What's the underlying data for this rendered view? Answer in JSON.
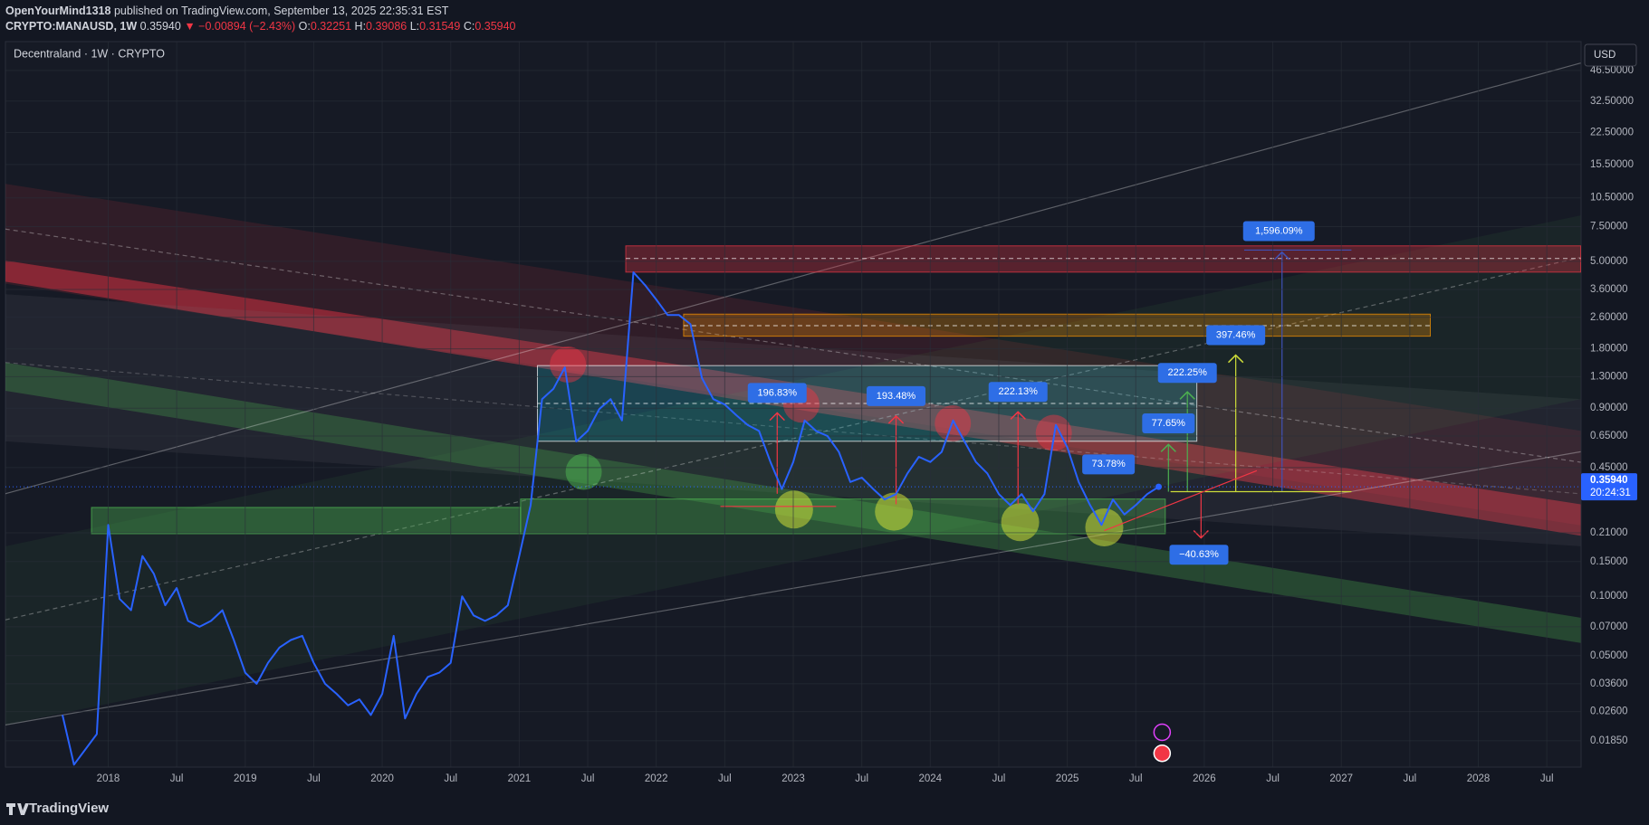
{
  "header": {
    "author": "OpenYourMind1318",
    "published": "published on TradingView.com, September 13, 2025 22:35:31 EST",
    "symbol": "CRYPTO:MANAUSD, 1W",
    "last": "0.35940",
    "change": "▼ −0.00894 (−2.43%)",
    "open_label": "O:",
    "open": "0.32251",
    "high_label": "H:",
    "high": "0.39086",
    "low_label": "L:",
    "low": "0.31549",
    "close_label": "C:",
    "close": "0.35940"
  },
  "chart_data": {
    "type": "line",
    "title": "Decentraland · 1W · CRYPTO",
    "currency": "USD",
    "last_price_label": "0.35940",
    "countdown": "20:24:31",
    "color": "#2962ff",
    "log_scale": true,
    "grid": true,
    "x": [
      "2017-09",
      "2017-10",
      "2017-12",
      "2018-01",
      "2018-02",
      "2018-03",
      "2018-04",
      "2018-05",
      "2018-06",
      "2018-07",
      "2018-08",
      "2018-09",
      "2018-10",
      "2018-11",
      "2018-12",
      "2019-01",
      "2019-02",
      "2019-03",
      "2019-04",
      "2019-05",
      "2019-06",
      "2019-07",
      "2019-08",
      "2019-09",
      "2019-10",
      "2019-11",
      "2019-12",
      "2020-01",
      "2020-02",
      "2020-03",
      "2020-04",
      "2020-05",
      "2020-06",
      "2020-07",
      "2020-08",
      "2020-09",
      "2020-10",
      "2020-11",
      "2020-12",
      "2021-01",
      "2021-02",
      "2021-03",
      "2021-04",
      "2021-05",
      "2021-06",
      "2021-07",
      "2021-08",
      "2021-09",
      "2021-10",
      "2021-11",
      "2021-12",
      "2022-01",
      "2022-02",
      "2022-03",
      "2022-04",
      "2022-05",
      "2022-06",
      "2022-07",
      "2022-08",
      "2022-09",
      "2022-10",
      "2022-11",
      "2022-12",
      "2023-01",
      "2023-02",
      "2023-03",
      "2023-04",
      "2023-05",
      "2023-06",
      "2023-07",
      "2023-08",
      "2023-09",
      "2023-10",
      "2023-11",
      "2023-12",
      "2024-01",
      "2024-02",
      "2024-03",
      "2024-04",
      "2024-05",
      "2024-06",
      "2024-07",
      "2024-08",
      "2024-09",
      "2024-10",
      "2024-11",
      "2024-12",
      "2025-01",
      "2025-02",
      "2025-03",
      "2025-04",
      "2025-05",
      "2025-06",
      "2025-07",
      "2025-08",
      "2025-09"
    ],
    "values": [
      0.025,
      0.014,
      0.02,
      0.23,
      0.097,
      0.085,
      0.16,
      0.13,
      0.09,
      0.11,
      0.075,
      0.07,
      0.075,
      0.085,
      0.06,
      0.041,
      0.036,
      0.046,
      0.055,
      0.06,
      0.063,
      0.046,
      0.036,
      0.032,
      0.028,
      0.03,
      0.025,
      0.032,
      0.063,
      0.024,
      0.032,
      0.039,
      0.041,
      0.046,
      0.1,
      0.08,
      0.075,
      0.08,
      0.09,
      0.16,
      0.29,
      1.0,
      1.13,
      1.45,
      0.61,
      0.69,
      0.89,
      1.0,
      0.78,
      4.4,
      3.8,
      3.2,
      2.67,
      2.67,
      2.4,
      1.28,
      1.0,
      0.94,
      0.83,
      0.74,
      0.69,
      0.48,
      0.35,
      0.48,
      0.78,
      0.69,
      0.65,
      0.54,
      0.38,
      0.4,
      0.35,
      0.31,
      0.33,
      0.42,
      0.51,
      0.48,
      0.54,
      0.78,
      0.61,
      0.48,
      0.42,
      0.33,
      0.29,
      0.33,
      0.27,
      0.33,
      0.74,
      0.57,
      0.38,
      0.29,
      0.23,
      0.31,
      0.26,
      0.29,
      0.33,
      0.3594
    ],
    "xlim": [
      "2017-04",
      "2028-10"
    ],
    "xticks": [
      {
        "value": "2018-01",
        "label": "2018"
      },
      {
        "value": "2018-07",
        "label": "Jul"
      },
      {
        "value": "2019-01",
        "label": "2019"
      },
      {
        "value": "2019-07",
        "label": "Jul"
      },
      {
        "value": "2020-01",
        "label": "2020"
      },
      {
        "value": "2020-07",
        "label": "Jul"
      },
      {
        "value": "2021-01",
        "label": "2021"
      },
      {
        "value": "2021-07",
        "label": "Jul"
      },
      {
        "value": "2022-01",
        "label": "2022"
      },
      {
        "value": "2022-07",
        "label": "Jul"
      },
      {
        "value": "2023-01",
        "label": "2023"
      },
      {
        "value": "2023-07",
        "label": "Jul"
      },
      {
        "value": "2024-01",
        "label": "2024"
      },
      {
        "value": "2024-07",
        "label": "Jul"
      },
      {
        "value": "2025-01",
        "label": "2025"
      },
      {
        "value": "2025-07",
        "label": "Jul"
      },
      {
        "value": "2026-01",
        "label": "2026"
      },
      {
        "value": "2026-07",
        "label": "Jul"
      },
      {
        "value": "2027-01",
        "label": "2027"
      },
      {
        "value": "2027-07",
        "label": "Jul"
      },
      {
        "value": "2028-01",
        "label": "2028"
      },
      {
        "value": "2028-07",
        "label": "Jul"
      }
    ],
    "ylim": [
      0.0136,
      65.1
    ],
    "yticks": [
      {
        "value": 46.5,
        "label": "46.50000"
      },
      {
        "value": 32.5,
        "label": "32.50000"
      },
      {
        "value": 22.5,
        "label": "22.50000"
      },
      {
        "value": 15.5,
        "label": "15.50000"
      },
      {
        "value": 10.5,
        "label": "10.50000"
      },
      {
        "value": 7.5,
        "label": "7.50000"
      },
      {
        "value": 5,
        "label": "5.00000"
      },
      {
        "value": 3.6,
        "label": "3.60000"
      },
      {
        "value": 2.6,
        "label": "2.60000"
      },
      {
        "value": 1.8,
        "label": "1.80000"
      },
      {
        "value": 1.3,
        "label": "1.30000"
      },
      {
        "value": 0.9,
        "label": "0.90000"
      },
      {
        "value": 0.65,
        "label": "0.65000"
      },
      {
        "value": 0.45,
        "label": "0.45000"
      },
      {
        "value": 0.21,
        "label": "0.21000"
      },
      {
        "value": 0.15,
        "label": "0.15000"
      },
      {
        "value": 0.1,
        "label": "0.10000"
      },
      {
        "value": 0.07,
        "label": "0.07000"
      },
      {
        "value": 0.05,
        "label": "0.05000"
      },
      {
        "value": 0.036,
        "label": "0.03600"
      },
      {
        "value": 0.026,
        "label": "0.02600"
      },
      {
        "value": 0.0185,
        "label": "0.01850"
      }
    ],
    "annotations": [
      "196.83%",
      "193.48%",
      "222.13%",
      "73.78%",
      "77.65%",
      "222.25%",
      "397.46%",
      "1,596.09%",
      "−40.63%"
    ]
  },
  "footer": {
    "brand": "TradingView"
  }
}
